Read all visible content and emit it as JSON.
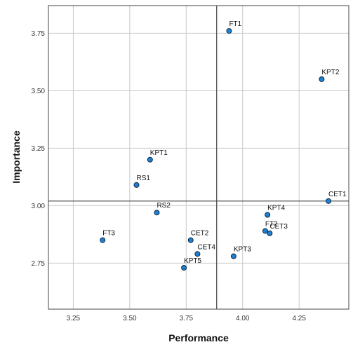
{
  "chart_data": {
    "type": "scatter",
    "title": "",
    "xlabel": "Performance",
    "ylabel": "Importance",
    "xlim": [
      3.14,
      4.47
    ],
    "ylim": [
      2.55,
      3.87
    ],
    "xticks": [
      "3.25",
      "3.50",
      "3.75",
      "4.00",
      "4.25"
    ],
    "yticks": [
      "2.75",
      "3.00",
      "3.25",
      "3.50",
      "3.75"
    ],
    "grid": true,
    "reference_lines": {
      "x": 3.885,
      "y": 3.02
    },
    "points": [
      {
        "label": "FT1",
        "x": 3.94,
        "y": 3.76
      },
      {
        "label": "KPT2",
        "x": 4.35,
        "y": 3.55
      },
      {
        "label": "KPT1",
        "x": 3.59,
        "y": 3.2
      },
      {
        "label": "RS1",
        "x": 3.53,
        "y": 3.09
      },
      {
        "label": "CET1",
        "x": 4.38,
        "y": 3.02
      },
      {
        "label": "RS2",
        "x": 3.62,
        "y": 2.97
      },
      {
        "label": "KPT4",
        "x": 4.11,
        "y": 2.96
      },
      {
        "label": "FT2",
        "x": 4.1,
        "y": 2.89
      },
      {
        "label": "CET3",
        "x": 4.12,
        "y": 2.88
      },
      {
        "label": "FT3",
        "x": 3.38,
        "y": 2.85
      },
      {
        "label": "CET2",
        "x": 3.77,
        "y": 2.85
      },
      {
        "label": "CET4",
        "x": 3.8,
        "y": 2.79
      },
      {
        "label": "KPT3",
        "x": 3.96,
        "y": 2.78
      },
      {
        "label": "KPT5",
        "x": 3.74,
        "y": 2.73
      }
    ],
    "colors": {
      "marker_fill": "#1f7fd0",
      "marker_stroke": "#0d2a45",
      "grid": "#c8c8c8",
      "frame": "#444444"
    }
  }
}
